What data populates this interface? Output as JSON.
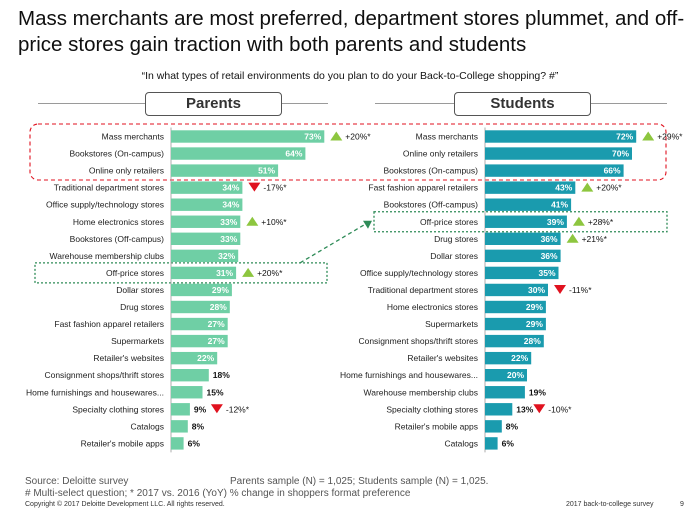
{
  "title": "Mass merchants are most preferred, department stores plummet, and off-price stores gain traction with both parents and students",
  "question": "“In what types of retail environments do you plan to do your Back-to-College shopping? #”",
  "footer": {
    "source": "Source: Deloitte survey",
    "sample": "Parents sample (N) = 1,025; Students sample (N) = 1,025.",
    "note": "# Multi-select question; * 2017 vs. 2016 (YoY) % change in shoppers format preference",
    "copyright": "Copyright © 2017 Deloitte Development LLC. All rights reserved.",
    "survey": "2017 back-to-college survey",
    "page": "9"
  },
  "colors": {
    "parents_bar": "#6fcfa5",
    "students_bar": "#1a9bae",
    "up_arrow": "#8dc63f",
    "down_arrow": "#e0121f",
    "highlight_red": "#e0121f",
    "highlight_green": "#2e8b57"
  },
  "chart_data": [
    {
      "type": "bar",
      "orientation": "horizontal",
      "title": "Parents",
      "xlim": [
        0,
        80
      ],
      "categories": [
        "Mass merchants",
        "Bookstores (On-campus)",
        "Online only retailers",
        "Traditional department stores",
        "Office supply/technology stores",
        "Home electronics stores",
        "Bookstores (Off-campus)",
        "Warehouse membership clubs",
        "Off-price stores",
        "Dollar stores",
        "Drug stores",
        "Fast fashion apparel retailers",
        "Supermarkets",
        "Retailer's websites",
        "Consignment shops/thrift stores",
        "Home furnishings and housewares stores",
        "Specialty clothing stores",
        "Catalogs",
        "Retailer's mobile apps"
      ],
      "values": [
        73,
        64,
        51,
        34,
        34,
        33,
        33,
        32,
        31,
        29,
        28,
        27,
        27,
        22,
        18,
        15,
        9,
        8,
        6
      ],
      "value_labels": [
        "73%",
        "64%",
        "51%",
        "34%",
        "34%",
        "33%",
        "33%",
        "32%",
        "31%",
        "29%",
        "28%",
        "27%",
        "27%",
        "22%",
        "18%",
        "15%",
        "9%",
        "8%",
        "6%"
      ],
      "display_labels": [
        "Mass merchants",
        "Bookstores (On-campus)",
        "Online only retailers",
        "Traditional department stores",
        "Office supply/technology stores",
        "Home electronics stores",
        "Bookstores (Off-campus)",
        "Warehouse membership clubs",
        "Off-price stores",
        "Dollar stores",
        "Drug stores",
        "Fast fashion apparel retailers",
        "Supermarkets",
        "Retailer's websites",
        "Consignment shops/thrift stores",
        "Home furnishings and housewares...",
        "Specialty clothing stores",
        "Catalogs",
        "Retailer's mobile apps"
      ],
      "changes": [
        {
          "category": "Mass merchants",
          "direction": "up",
          "label": "+20%*"
        },
        {
          "category": "Traditional department stores",
          "direction": "down",
          "label": "-17%*"
        },
        {
          "category": "Home electronics stores",
          "direction": "up",
          "label": "+10%*"
        },
        {
          "category": "Off-price stores",
          "direction": "up",
          "label": "+20%*"
        },
        {
          "category": "Specialty clothing stores",
          "direction": "down",
          "label": "-12%*"
        }
      ]
    },
    {
      "type": "bar",
      "orientation": "horizontal",
      "title": "Students",
      "xlim": [
        0,
        80
      ],
      "categories": [
        "Mass merchants",
        "Online only retailers",
        "Bookstores (On-campus)",
        "Fast fashion apparel retailers",
        "Bookstores (Off-campus)",
        "Off-price stores",
        "Drug stores",
        "Dollar stores",
        "Office supply/technology stores",
        "Traditional department stores",
        "Home electronics stores",
        "Supermarkets",
        "Consignment shops/thrift stores",
        "Retailer's websites",
        "Home furnishings and housewares stores",
        "Warehouse membership clubs",
        "Specialty clothing stores",
        "Retailer's mobile apps",
        "Catalogs"
      ],
      "values": [
        72,
        70,
        66,
        43,
        41,
        39,
        36,
        36,
        35,
        30,
        29,
        29,
        28,
        22,
        20,
        19,
        13,
        8,
        6
      ],
      "value_labels": [
        "72%",
        "70%",
        "66%",
        "43%",
        "41%",
        "39%",
        "36%",
        "36%",
        "35%",
        "30%",
        "29%",
        "29%",
        "28%",
        "22%",
        "20%",
        "19%",
        "13%",
        "8%",
        "6%"
      ],
      "display_labels": [
        "Mass merchants",
        "Online only retailers",
        "Bookstores (On-campus)",
        "Fast fashion apparel retailers",
        "Bookstores (Off-campus)",
        "Off-price stores",
        "Drug stores",
        "Dollar stores",
        "Office supply/technology stores",
        "Traditional department stores",
        "Home electronics stores",
        "Supermarkets",
        "Consignment shops/thrift stores",
        "Retailer's websites",
        "Home furnishings and housewares...",
        "Warehouse membership clubs",
        "Specialty clothing stores",
        "Retailer's mobile apps",
        "Catalogs"
      ],
      "changes": [
        {
          "category": "Mass merchants",
          "direction": "up",
          "label": "+29%*"
        },
        {
          "category": "Fast fashion apparel retailers",
          "direction": "up",
          "label": "+20%*"
        },
        {
          "category": "Off-price stores",
          "direction": "up",
          "label": "+28%*"
        },
        {
          "category": "Drug stores",
          "direction": "up",
          "label": "+21%*"
        },
        {
          "category": "Traditional department stores",
          "direction": "down",
          "label": "-11%*"
        },
        {
          "category": "Specialty clothing stores",
          "direction": "down",
          "label": "-10%*"
        }
      ]
    }
  ]
}
